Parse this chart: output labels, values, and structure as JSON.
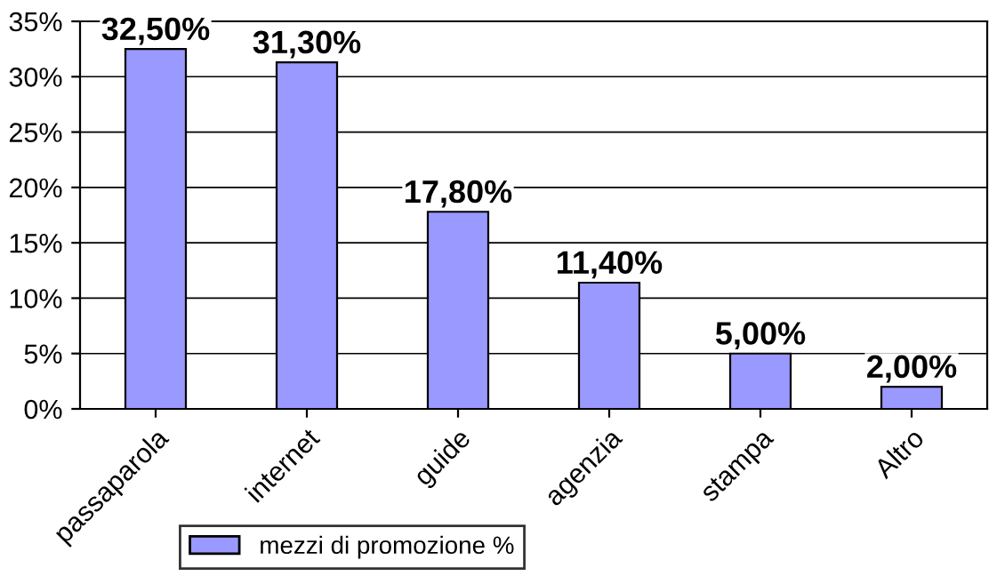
{
  "chart_data": {
    "type": "bar",
    "categories": [
      "passaparola",
      "internet",
      "guide",
      "agenzia",
      "stampa",
      "Altro"
    ],
    "series": [
      {
        "name": "mezzi di promozione %",
        "color": "#9999ff",
        "values": [
          32.5,
          31.3,
          17.8,
          11.4,
          5.0,
          2.0
        ],
        "value_labels": [
          "32,50%",
          "31,30%",
          "17,80%",
          "11,40%",
          "5,00%",
          "2,00%"
        ]
      }
    ],
    "ylim": [
      0,
      35
    ],
    "yticks": [
      {
        "value": 0,
        "label": "0%"
      },
      {
        "value": 5,
        "label": "5%"
      },
      {
        "value": 10,
        "label": "10%"
      },
      {
        "value": 15,
        "label": "15%"
      },
      {
        "value": 20,
        "label": "20%"
      },
      {
        "value": 25,
        "label": "25%"
      },
      {
        "value": 30,
        "label": "30%"
      },
      {
        "value": 35,
        "label": "35%"
      }
    ],
    "grid": "y",
    "legend": "bottom"
  }
}
